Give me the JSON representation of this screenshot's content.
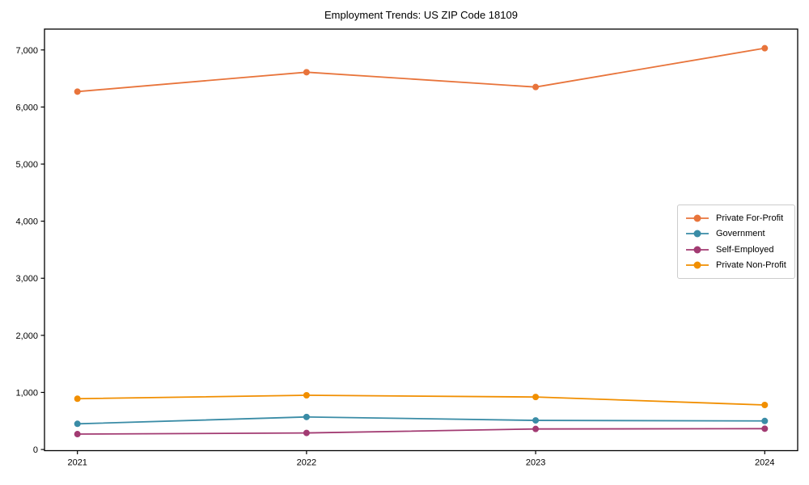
{
  "title": "Employment Trends: US ZIP Code 18109",
  "chart_data": {
    "type": "line",
    "title": "Employment Trends: US ZIP Code 18109",
    "xlabel": "",
    "ylabel": "",
    "categories": [
      "2021",
      "2022",
      "2023",
      "2024"
    ],
    "series": [
      {
        "name": "Private For-Profit",
        "color": "#E8743B",
        "values": [
          6270,
          6610,
          6350,
          7030
        ]
      },
      {
        "name": "Government",
        "color": "#3A8CA6",
        "values": [
          450,
          570,
          510,
          500
        ]
      },
      {
        "name": "Self-Employed",
        "color": "#A23B72",
        "values": [
          270,
          290,
          360,
          365
        ]
      },
      {
        "name": "Private Non-Profit",
        "color": "#F18F01",
        "values": [
          890,
          950,
          920,
          780
        ]
      }
    ],
    "ylim": [
      -20,
      7365
    ],
    "y_ticks": [
      0,
      1000,
      2000,
      3000,
      4000,
      5000,
      6000,
      7000
    ],
    "y_tick_labels": [
      "0",
      "1,000",
      "2,000",
      "3,000",
      "4,000",
      "5,000",
      "6,000",
      "7,000"
    ],
    "grid": false,
    "legend_position": "center-right",
    "marker": "circle",
    "line_width": 1.8,
    "marker_radius": 4
  },
  "colors": {
    "spine": "#000000",
    "text": "#000000",
    "legend_border": "#cccccc",
    "background": "#ffffff"
  }
}
